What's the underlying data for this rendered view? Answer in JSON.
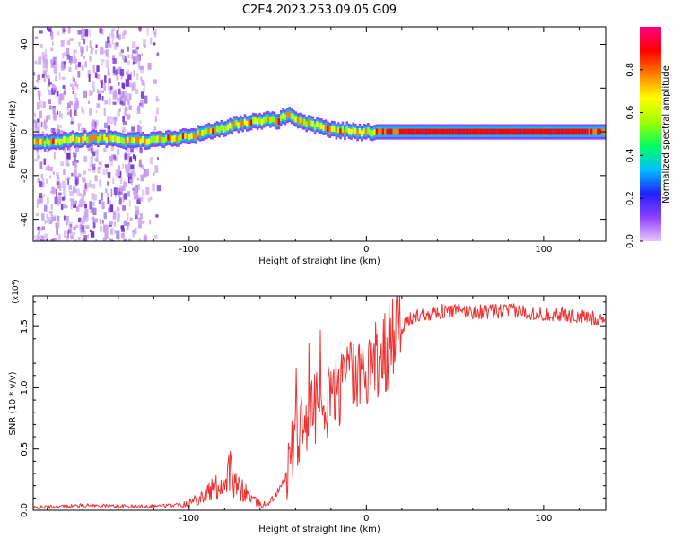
{
  "title": "C2E4.2023.253.09.05.G09",
  "chart_data": [
    {
      "type": "heatmap",
      "name": "spectrogram",
      "xlabel": "Height of straight line (km)",
      "ylabel": "Frequency (Hz)",
      "xlim": [
        -188,
        135
      ],
      "ylim": [
        -50,
        48
      ],
      "xticks": [
        -100,
        0,
        100
      ],
      "xtick_labels": [
        "-100",
        "0",
        "100"
      ],
      "yticks": [
        -40,
        -20,
        0,
        20,
        40
      ],
      "ytick_labels": [
        "-40",
        "-20",
        "0",
        "20",
        "40"
      ],
      "ridge": {
        "x": [
          -185,
          -170,
          -160,
          -150,
          -140,
          -130,
          -120,
          -110,
          -100,
          -90,
          -80,
          -70,
          -60,
          -55,
          -50,
          -45,
          -40,
          -35,
          -30,
          -25,
          -20,
          -15,
          -10,
          -5,
          0,
          5,
          10,
          50,
          100,
          135
        ],
        "y": [
          -5,
          -4,
          -3,
          -3,
          -4,
          -4,
          -4,
          -3,
          -2,
          0,
          2,
          4,
          5,
          6,
          5,
          8,
          6,
          4,
          3,
          2,
          1,
          0.5,
          0.5,
          0,
          0,
          0,
          0,
          0,
          0,
          0
        ]
      },
      "colorbar": {
        "label": "Normalized spectral amplitude",
        "range": [
          0,
          1
        ],
        "ticks": [
          0.0,
          0.2,
          0.4,
          0.6,
          0.8
        ],
        "tick_labels": [
          "0.0",
          "0.2",
          "0.4",
          "0.6",
          "0.8"
        ],
        "colors": [
          "#e8c8f8",
          "#9040ff",
          "#2020ff",
          "#00c0ff",
          "#00ff60",
          "#a0ff00",
          "#ffff00",
          "#ff8000",
          "#ff0000",
          "#ff0080"
        ]
      }
    },
    {
      "type": "line",
      "name": "snr",
      "xlabel": "Height of straight line (km)",
      "ylabel": "SNR (10 * v/v)",
      "scale_label": "(x10⁴)",
      "xlim": [
        -188,
        135
      ],
      "ylim": [
        0,
        1.75
      ],
      "xticks": [
        -100,
        0,
        100
      ],
      "xtick_labels": [
        "-100",
        "0",
        "100"
      ],
      "yticks": [
        0.0,
        0.5,
        1.0,
        1.5
      ],
      "ytick_labels": [
        "0.0",
        "0.5",
        "1.0",
        "1.5"
      ],
      "color": "#ee3333",
      "series": [
        {
          "name": "SNR",
          "x": [
            -188,
            -160,
            -130,
            -110,
            -100,
            -95,
            -90,
            -85,
            -80,
            -77,
            -75,
            -70,
            -66,
            -62,
            -58,
            -52,
            -46,
            -43,
            -40,
            -37,
            -34,
            -30,
            -26,
            -22,
            -18,
            -14,
            -10,
            -5,
            0,
            5,
            10,
            15,
            20,
            25,
            30,
            40,
            50,
            60,
            70,
            80,
            90,
            100,
            110,
            120,
            135
          ],
          "y": [
            0.02,
            0.04,
            0.03,
            0.04,
            0.06,
            0.1,
            0.14,
            0.18,
            0.24,
            0.35,
            0.2,
            0.16,
            0.12,
            0.06,
            0.04,
            0.1,
            0.25,
            0.45,
            0.6,
            0.65,
            0.7,
            0.8,
            0.85,
            0.9,
            0.95,
            1.0,
            1.05,
            1.08,
            1.15,
            1.2,
            1.28,
            1.38,
            1.48,
            1.56,
            1.6,
            1.62,
            1.63,
            1.62,
            1.62,
            1.63,
            1.62,
            1.6,
            1.6,
            1.58,
            1.56
          ]
        }
      ]
    }
  ]
}
